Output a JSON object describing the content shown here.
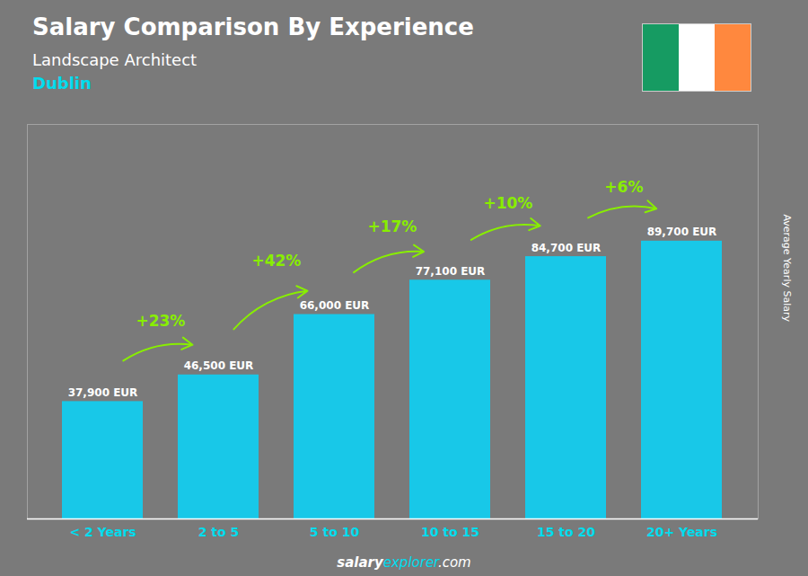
{
  "chart_data": {
    "type": "bar",
    "title": "Salary Comparison By Experience",
    "subtitle": "Landscape Architect",
    "city": "Dublin",
    "y_label": "Average Yearly Salary",
    "categories": [
      "< 2 Years",
      "2 to 5",
      "5 to 10",
      "10 to 15",
      "15 to 20",
      "20+ Years"
    ],
    "values": [
      37900,
      46500,
      66000,
      77100,
      84700,
      89700
    ],
    "value_labels": [
      "37,900 EUR",
      "46,500 EUR",
      "66,000 EUR",
      "77,100 EUR",
      "84,700 EUR",
      "89,700 EUR"
    ],
    "data_labels": true,
    "color": "#18C8E8",
    "ylim": [
      0,
      127374
    ],
    "yticks": [],
    "tick_labels": "x",
    "grid": false,
    "annotations": [
      {
        "text": "+23%",
        "from": "< 2 Years",
        "to": "2 to 5",
        "color": "#88EE00"
      },
      {
        "text": "+42%",
        "from": "2 to 5",
        "to": "5 to 10",
        "color": "#88EE00"
      },
      {
        "text": "+17%",
        "from": "5 to 10",
        "to": "10 to 15",
        "color": "#88EE00"
      },
      {
        "text": "+10%",
        "from": "10 to 15",
        "to": "15 to 20",
        "color": "#88EE00"
      },
      {
        "text": "+6%",
        "from": "15 to 20",
        "to": "20+ Years",
        "color": "#88EE00"
      }
    ],
    "footer": [
      {
        "text": "salary",
        "color": "#FFFFFF"
      },
      {
        "text": "explorer",
        "color": "#00DDEE"
      },
      {
        "text": ".com",
        "color": "#FFFFFF"
      }
    ]
  }
}
